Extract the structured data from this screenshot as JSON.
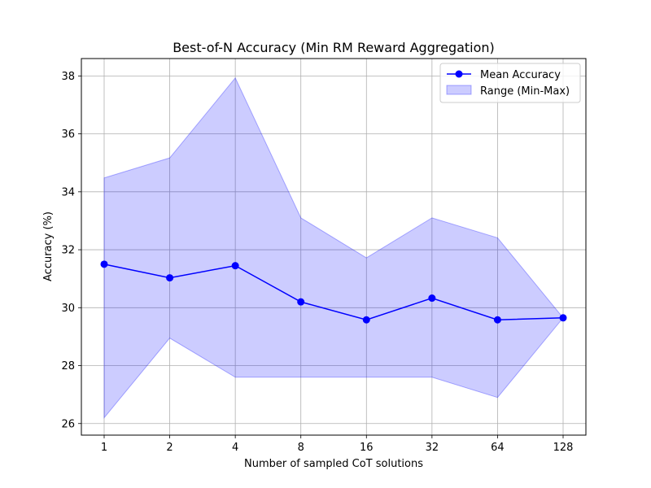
{
  "chart_data": {
    "type": "line",
    "title": "Best-of-N Accuracy (Min RM Reward Aggregation)",
    "xlabel": "Number of sampled CoT solutions",
    "ylabel": "Accuracy (%)",
    "x": [
      "1",
      "2",
      "4",
      "8",
      "16",
      "32",
      "64",
      "128"
    ],
    "series": [
      {
        "name": "Mean Accuracy",
        "type": "line",
        "color": "#0000ff",
        "values": [
          31.5,
          31.03,
          31.45,
          30.2,
          29.58,
          30.33,
          29.58,
          29.65
        ]
      },
      {
        "name": "Range (Min-Max)",
        "type": "band",
        "color": "#0000ff",
        "min": [
          26.2,
          28.95,
          27.6,
          27.6,
          27.6,
          27.6,
          26.9,
          29.65
        ],
        "max": [
          34.48,
          35.17,
          37.93,
          33.1,
          31.72,
          33.1,
          32.41,
          29.65
        ]
      }
    ],
    "yticks": [
      26,
      28,
      30,
      32,
      34,
      36,
      38
    ],
    "ylim": [
      25.6,
      38.6
    ],
    "grid": true,
    "legend_position": "top-right"
  }
}
